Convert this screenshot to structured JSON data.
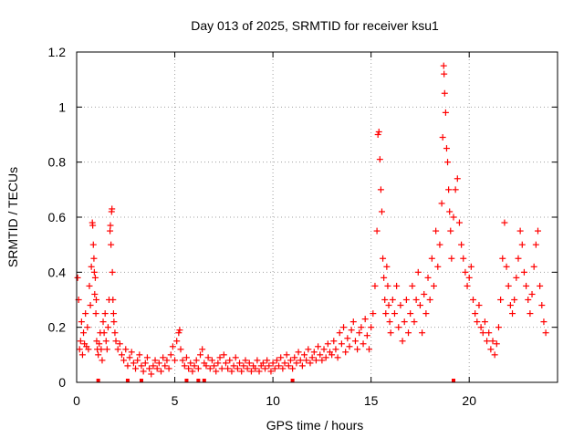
{
  "chart_data": {
    "type": "scatter",
    "title": "Day 013 of 2025, SRMTID for receiver ksu1",
    "xlabel": "GPS time / hours",
    "ylabel": "SRMTID / TECUs",
    "xlim": [
      0,
      24.5
    ],
    "ylim": [
      0,
      1.2
    ],
    "xticks": [
      0,
      5,
      10,
      15,
      20
    ],
    "xtick_labels": [
      "0",
      "5",
      "10",
      "15",
      "20"
    ],
    "yticks": [
      0,
      0.2,
      0.4,
      0.6,
      0.8,
      1.0,
      1.2
    ],
    "ytick_labels": [
      "0",
      "0.2",
      "0.4",
      "0.6",
      "0.8",
      "1",
      "1.2"
    ],
    "grid": true,
    "marker": "+",
    "color": "#ff0000",
    "series": [
      {
        "name": "SRMTID",
        "points": [
          [
            0.05,
            0.38
          ],
          [
            0.1,
            0.3
          ],
          [
            0.15,
            0.12
          ],
          [
            0.2,
            0.15
          ],
          [
            0.25,
            0.22
          ],
          [
            0.3,
            0.1
          ],
          [
            0.35,
            0.18
          ],
          [
            0.4,
            0.14
          ],
          [
            0.45,
            0.25
          ],
          [
            0.5,
            0.13
          ],
          [
            0.55,
            0.2
          ],
          [
            0.6,
            0.12
          ],
          [
            0.65,
            0.35
          ],
          [
            0.7,
            0.28
          ],
          [
            0.75,
            0.42
          ],
          [
            0.8,
            0.58
          ],
          [
            0.82,
            0.57
          ],
          [
            0.85,
            0.5
          ],
          [
            0.88,
            0.45
          ],
          [
            0.9,
            0.4
          ],
          [
            0.92,
            0.32
          ],
          [
            0.95,
            0.38
          ],
          [
            0.98,
            0.25
          ],
          [
            1.0,
            0.3
          ],
          [
            1.02,
            0.15
          ],
          [
            1.05,
            0.12
          ],
          [
            1.1,
            0.1
          ],
          [
            1.15,
            0.14
          ],
          [
            1.2,
            0.18
          ],
          [
            1.25,
            0.12
          ],
          [
            1.3,
            0.08
          ],
          [
            1.35,
            0.22
          ],
          [
            1.4,
            0.18
          ],
          [
            1.45,
            0.25
          ],
          [
            1.5,
            0.15
          ],
          [
            1.55,
            0.12
          ],
          [
            1.6,
            0.2
          ],
          [
            1.65,
            0.3
          ],
          [
            1.7,
            0.55
          ],
          [
            1.72,
            0.57
          ],
          [
            1.75,
            0.5
          ],
          [
            1.78,
            0.62
          ],
          [
            1.8,
            0.63
          ],
          [
            1.82,
            0.4
          ],
          [
            1.85,
            0.3
          ],
          [
            1.88,
            0.25
          ],
          [
            1.9,
            0.22
          ],
          [
            1.95,
            0.18
          ],
          [
            2.0,
            0.15
          ],
          [
            2.1,
            0.12
          ],
          [
            2.2,
            0.14
          ],
          [
            2.3,
            0.1
          ],
          [
            2.4,
            0.08
          ],
          [
            2.5,
            0.12
          ],
          [
            2.6,
            0.06
          ],
          [
            2.7,
            0.09
          ],
          [
            2.8,
            0.11
          ],
          [
            2.9,
            0.07
          ],
          [
            3.0,
            0.05
          ],
          [
            3.1,
            0.08
          ],
          [
            3.2,
            0.1
          ],
          [
            3.3,
            0.06
          ],
          [
            3.4,
            0.04
          ],
          [
            3.5,
            0.07
          ],
          [
            3.6,
            0.09
          ],
          [
            3.7,
            0.05
          ],
          [
            3.8,
            0.03
          ],
          [
            3.9,
            0.06
          ],
          [
            4.0,
            0.08
          ],
          [
            4.1,
            0.05
          ],
          [
            4.2,
            0.07
          ],
          [
            4.3,
            0.04
          ],
          [
            4.4,
            0.09
          ],
          [
            4.5,
            0.06
          ],
          [
            4.6,
            0.08
          ],
          [
            4.7,
            0.05
          ],
          [
            4.8,
            0.1
          ],
          [
            4.9,
            0.13
          ],
          [
            5.0,
            0.08
          ],
          [
            5.1,
            0.15
          ],
          [
            5.2,
            0.18
          ],
          [
            5.25,
            0.19
          ],
          [
            5.3,
            0.12
          ],
          [
            5.4,
            0.08
          ],
          [
            5.5,
            0.06
          ],
          [
            5.6,
            0.09
          ],
          [
            5.7,
            0.05
          ],
          [
            5.8,
            0.07
          ],
          [
            5.9,
            0.04
          ],
          [
            6.0,
            0.06
          ],
          [
            6.1,
            0.08
          ],
          [
            6.2,
            0.05
          ],
          [
            6.3,
            0.1
          ],
          [
            6.4,
            0.12
          ],
          [
            6.5,
            0.07
          ],
          [
            6.6,
            0.06
          ],
          [
            6.7,
            0.09
          ],
          [
            6.8,
            0.05
          ],
          [
            6.9,
            0.08
          ],
          [
            7.0,
            0.06
          ],
          [
            7.1,
            0.04
          ],
          [
            7.2,
            0.07
          ],
          [
            7.3,
            0.09
          ],
          [
            7.4,
            0.05
          ],
          [
            7.5,
            0.1
          ],
          [
            7.6,
            0.07
          ],
          [
            7.7,
            0.05
          ],
          [
            7.8,
            0.08
          ],
          [
            7.9,
            0.04
          ],
          [
            8.0,
            0.06
          ],
          [
            8.1,
            0.09
          ],
          [
            8.2,
            0.05
          ],
          [
            8.3,
            0.07
          ],
          [
            8.4,
            0.04
          ],
          [
            8.5,
            0.06
          ],
          [
            8.6,
            0.08
          ],
          [
            8.7,
            0.05
          ],
          [
            8.8,
            0.07
          ],
          [
            8.9,
            0.04
          ],
          [
            9.0,
            0.06
          ],
          [
            9.1,
            0.05
          ],
          [
            9.2,
            0.08
          ],
          [
            9.3,
            0.04
          ],
          [
            9.4,
            0.06
          ],
          [
            9.5,
            0.07
          ],
          [
            9.6,
            0.05
          ],
          [
            9.7,
            0.08
          ],
          [
            9.8,
            0.06
          ],
          [
            9.9,
            0.04
          ],
          [
            10.0,
            0.07
          ],
          [
            10.1,
            0.05
          ],
          [
            10.2,
            0.08
          ],
          [
            10.3,
            0.06
          ],
          [
            10.4,
            0.09
          ],
          [
            10.5,
            0.05
          ],
          [
            10.6,
            0.07
          ],
          [
            10.7,
            0.1
          ],
          [
            10.8,
            0.06
          ],
          [
            10.9,
            0.08
          ],
          [
            11.0,
            0.05
          ],
          [
            11.1,
            0.09
          ],
          [
            11.2,
            0.07
          ],
          [
            11.3,
            0.11
          ],
          [
            11.4,
            0.08
          ],
          [
            11.5,
            0.06
          ],
          [
            11.6,
            0.1
          ],
          [
            11.7,
            0.08
          ],
          [
            11.8,
            0.12
          ],
          [
            11.9,
            0.07
          ],
          [
            12.0,
            0.09
          ],
          [
            12.1,
            0.11
          ],
          [
            12.2,
            0.08
          ],
          [
            12.3,
            0.13
          ],
          [
            12.4,
            0.1
          ],
          [
            12.5,
            0.08
          ],
          [
            12.6,
            0.12
          ],
          [
            12.7,
            0.09
          ],
          [
            12.8,
            0.14
          ],
          [
            12.9,
            0.11
          ],
          [
            13.0,
            0.1
          ],
          [
            13.1,
            0.15
          ],
          [
            13.2,
            0.12
          ],
          [
            13.3,
            0.09
          ],
          [
            13.4,
            0.18
          ],
          [
            13.5,
            0.14
          ],
          [
            13.6,
            0.2
          ],
          [
            13.7,
            0.11
          ],
          [
            13.8,
            0.16
          ],
          [
            13.9,
            0.13
          ],
          [
            14.0,
            0.19
          ],
          [
            14.1,
            0.22
          ],
          [
            14.2,
            0.15
          ],
          [
            14.3,
            0.12
          ],
          [
            14.4,
            0.18
          ],
          [
            14.5,
            0.2
          ],
          [
            14.6,
            0.14
          ],
          [
            14.7,
            0.23
          ],
          [
            14.8,
            0.17
          ],
          [
            14.9,
            0.12
          ],
          [
            15.0,
            0.2
          ],
          [
            15.1,
            0.25
          ],
          [
            15.2,
            0.35
          ],
          [
            15.3,
            0.55
          ],
          [
            15.35,
            0.9
          ],
          [
            15.4,
            0.91
          ],
          [
            15.45,
            0.81
          ],
          [
            15.5,
            0.7
          ],
          [
            15.55,
            0.62
          ],
          [
            15.6,
            0.45
          ],
          [
            15.65,
            0.38
          ],
          [
            15.7,
            0.3
          ],
          [
            15.75,
            0.25
          ],
          [
            15.8,
            0.42
          ],
          [
            15.85,
            0.35
          ],
          [
            15.9,
            0.28
          ],
          [
            15.95,
            0.22
          ],
          [
            16.0,
            0.18
          ],
          [
            16.1,
            0.3
          ],
          [
            16.2,
            0.25
          ],
          [
            16.3,
            0.35
          ],
          [
            16.4,
            0.2
          ],
          [
            16.5,
            0.28
          ],
          [
            16.6,
            0.15
          ],
          [
            16.7,
            0.22
          ],
          [
            16.8,
            0.3
          ],
          [
            16.9,
            0.18
          ],
          [
            17.0,
            0.25
          ],
          [
            17.1,
            0.35
          ],
          [
            17.2,
            0.22
          ],
          [
            17.3,
            0.3
          ],
          [
            17.4,
            0.4
          ],
          [
            17.5,
            0.28
          ],
          [
            17.6,
            0.18
          ],
          [
            17.7,
            0.32
          ],
          [
            17.8,
            0.25
          ],
          [
            17.9,
            0.38
          ],
          [
            18.0,
            0.3
          ],
          [
            18.1,
            0.45
          ],
          [
            18.2,
            0.35
          ],
          [
            18.3,
            0.55
          ],
          [
            18.4,
            0.42
          ],
          [
            18.5,
            0.5
          ],
          [
            18.6,
            0.65
          ],
          [
            18.65,
            0.89
          ],
          [
            18.7,
            1.15
          ],
          [
            18.72,
            1.12
          ],
          [
            18.75,
            1.05
          ],
          [
            18.8,
            0.98
          ],
          [
            18.85,
            0.85
          ],
          [
            18.9,
            0.8
          ],
          [
            18.95,
            0.7
          ],
          [
            19.0,
            0.62
          ],
          [
            19.05,
            0.55
          ],
          [
            19.1,
            0.45
          ],
          [
            19.2,
            0.6
          ],
          [
            19.3,
            0.7
          ],
          [
            19.4,
            0.74
          ],
          [
            19.5,
            0.58
          ],
          [
            19.6,
            0.5
          ],
          [
            19.7,
            0.45
          ],
          [
            19.8,
            0.4
          ],
          [
            19.9,
            0.35
          ],
          [
            20.0,
            0.38
          ],
          [
            20.1,
            0.42
          ],
          [
            20.2,
            0.3
          ],
          [
            20.3,
            0.25
          ],
          [
            20.4,
            0.22
          ],
          [
            20.5,
            0.28
          ],
          [
            20.6,
            0.2
          ],
          [
            20.7,
            0.18
          ],
          [
            20.8,
            0.22
          ],
          [
            20.9,
            0.15
          ],
          [
            21.0,
            0.18
          ],
          [
            21.1,
            0.12
          ],
          [
            21.2,
            0.15
          ],
          [
            21.3,
            0.1
          ],
          [
            21.4,
            0.14
          ],
          [
            21.5,
            0.2
          ],
          [
            21.6,
            0.3
          ],
          [
            21.7,
            0.45
          ],
          [
            21.8,
            0.58
          ],
          [
            21.9,
            0.42
          ],
          [
            22.0,
            0.35
          ],
          [
            22.1,
            0.28
          ],
          [
            22.2,
            0.25
          ],
          [
            22.3,
            0.3
          ],
          [
            22.4,
            0.38
          ],
          [
            22.5,
            0.45
          ],
          [
            22.6,
            0.55
          ],
          [
            22.7,
            0.5
          ],
          [
            22.8,
            0.4
          ],
          [
            22.9,
            0.35
          ],
          [
            23.0,
            0.3
          ],
          [
            23.1,
            0.25
          ],
          [
            23.2,
            0.32
          ],
          [
            23.3,
            0.42
          ],
          [
            23.4,
            0.5
          ],
          [
            23.5,
            0.55
          ],
          [
            23.6,
            0.35
          ],
          [
            23.7,
            0.28
          ],
          [
            23.8,
            0.22
          ],
          [
            23.9,
            0.18
          ]
        ]
      }
    ],
    "markers_on_axis": [
      1.1,
      2.6,
      3.3,
      5.6,
      6.2,
      6.5,
      11.0,
      19.2
    ]
  }
}
